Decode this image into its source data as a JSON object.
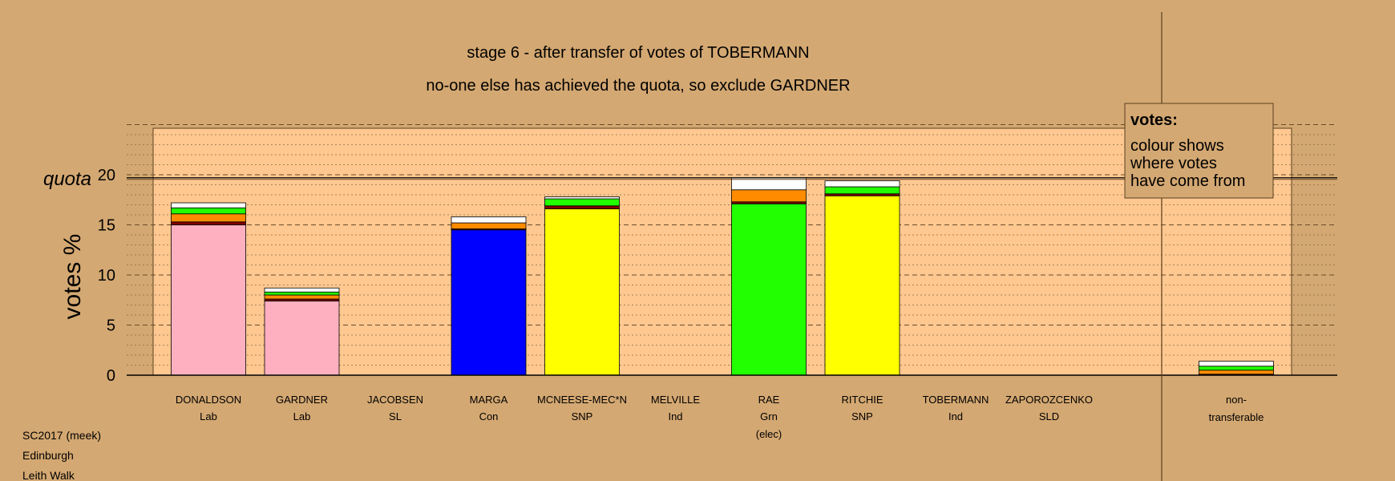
{
  "chart_data": {
    "type": "bar",
    "stacked": true,
    "title": "stage 6 - after transfer of votes of TOBERMANN",
    "subtitle": "no-one else has achieved the quota, so exclude GARDNER",
    "ylabel": "votes %",
    "quota_label": "quota",
    "quota": 19.7,
    "ylim": [
      0,
      25
    ],
    "yticks": [
      0,
      5,
      10,
      15,
      20
    ],
    "grid": true,
    "legend": {
      "position": "top-right",
      "title": "votes:",
      "lines": [
        "colour shows",
        "where votes",
        "have come from"
      ]
    },
    "categories": [
      {
        "name": "DONALDSON",
        "party": "Lab",
        "note": ""
      },
      {
        "name": "GARDNER",
        "party": "Lab",
        "note": ""
      },
      {
        "name": "JACOBSEN",
        "party": "SL",
        "note": ""
      },
      {
        "name": "MARGA",
        "party": "Con",
        "note": ""
      },
      {
        "name": "MCNEESE-MEC*N",
        "party": "SNP",
        "note": ""
      },
      {
        "name": "MELVILLE",
        "party": "Ind",
        "note": ""
      },
      {
        "name": "RAE",
        "party": "Grn",
        "note": "(elec)"
      },
      {
        "name": "RITCHIE",
        "party": "SNP",
        "note": ""
      },
      {
        "name": "TOBERMANN",
        "party": "Ind",
        "note": ""
      },
      {
        "name": "ZAPOROZCENKO",
        "party": "SLD",
        "note": ""
      }
    ],
    "nontransferable": {
      "label_1": "non-",
      "label_2": "transferable"
    },
    "series": [
      {
        "color": "#ffb0c0",
        "values": [
          15.0,
          7.4,
          0,
          0,
          0,
          0,
          0,
          0,
          0,
          0
        ],
        "nontransferable": 0
      },
      {
        "color": "#0000ff",
        "values": [
          0,
          0,
          0,
          14.5,
          0,
          0,
          0,
          0,
          0,
          0
        ],
        "nontransferable": 0
      },
      {
        "color": "#ffff00",
        "values": [
          0,
          0,
          0,
          0,
          16.6,
          0,
          0,
          17.9,
          0,
          0
        ],
        "nontransferable": 0
      },
      {
        "color": "#22ff00",
        "values": [
          0,
          0,
          0,
          0,
          0,
          0,
          17.1,
          0,
          0,
          0
        ],
        "nontransferable": 0
      },
      {
        "color": "#800000",
        "values": [
          0.3,
          0.2,
          0,
          0.1,
          0.3,
          0,
          0.2,
          0.2,
          0,
          0
        ],
        "nontransferable": 0.1
      },
      {
        "color": "#ff8c00",
        "values": [
          0.8,
          0.4,
          0,
          0.6,
          0,
          0,
          1.2,
          0,
          0,
          0
        ],
        "nontransferable": 0.4
      },
      {
        "color": "#22ff00",
        "values": [
          0.6,
          0.3,
          0,
          0,
          0.7,
          0,
          0,
          0.7,
          0,
          0
        ],
        "nontransferable": 0.4
      },
      {
        "color": "#ffffff",
        "values": [
          0.5,
          0.4,
          0,
          0.6,
          0.2,
          0,
          1.2,
          0.6,
          0,
          0
        ],
        "nontransferable": 0.5
      }
    ]
  },
  "footer": {
    "election": "SC2017 (meek)",
    "council": "Edinburgh",
    "ward": "Leith Walk"
  }
}
